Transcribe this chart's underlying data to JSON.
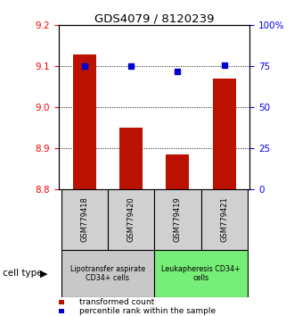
{
  "title": "GDS4079 / 8120239",
  "samples": [
    "GSM779418",
    "GSM779420",
    "GSM779419",
    "GSM779421"
  ],
  "red_values": [
    9.13,
    8.95,
    8.885,
    9.07
  ],
  "blue_values": [
    75,
    75,
    72,
    75.5
  ],
  "ylim_left": [
    8.8,
    9.2
  ],
  "ylim_right": [
    0,
    100
  ],
  "yticks_left": [
    8.8,
    8.9,
    9.0,
    9.1,
    9.2
  ],
  "yticks_right": [
    0,
    25,
    50,
    75,
    100
  ],
  "ytick_labels_right": [
    "0",
    "25",
    "50",
    "75",
    "100%"
  ],
  "bar_color": "#bb1100",
  "dot_color": "#0000cc",
  "bar_width": 0.5,
  "groups": [
    {
      "label": "Lipotransfer aspirate\nCD34+ cells",
      "indices": [
        0,
        1
      ],
      "color": "#c8c8c8"
    },
    {
      "label": "Leukapheresis CD34+\ncells",
      "indices": [
        2,
        3
      ],
      "color": "#77ee77"
    }
  ],
  "legend_items": [
    {
      "color": "#bb1100",
      "label": "transformed count"
    },
    {
      "color": "#0000cc",
      "label": "percentile rank within the sample"
    }
  ],
  "cell_type_label": "cell type"
}
